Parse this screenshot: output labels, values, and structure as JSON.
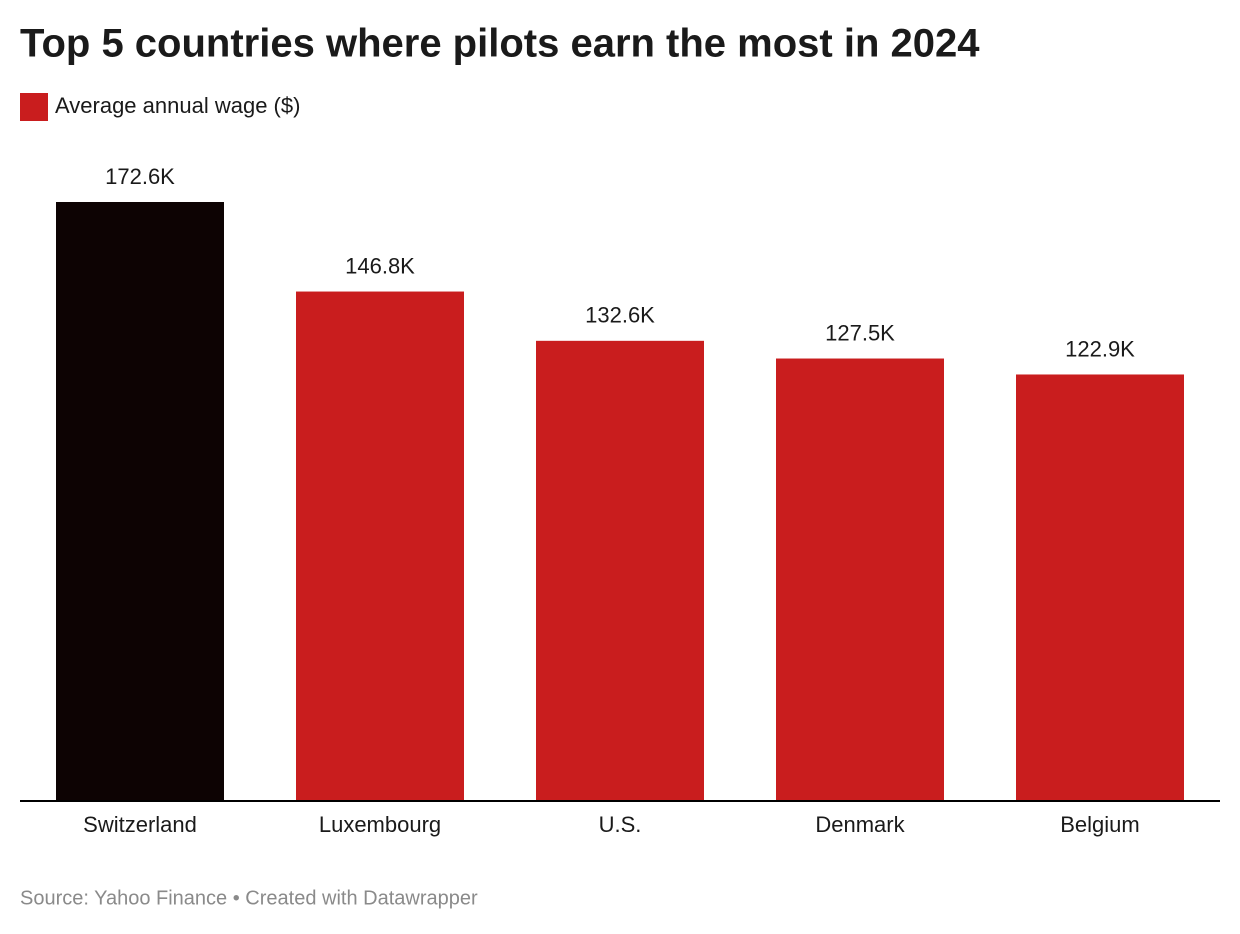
{
  "chart_data": {
    "type": "bar",
    "title": "Top 5 countries where pilots earn the most in 2024",
    "series_name": "Average annual wage ($)",
    "categories": [
      "Switzerland",
      "Luxembourg",
      "U.S.",
      "Denmark",
      "Belgium"
    ],
    "values": [
      172600,
      146800,
      132600,
      127500,
      122900
    ],
    "value_labels": [
      "172.6K",
      "146.8K",
      "132.6K",
      "127.5K",
      "122.9K"
    ],
    "color": "#c91d1e",
    "colors": [
      "#0d0303",
      "#c91d1e",
      "#c91d1e",
      "#c91d1e",
      "#c91d1e"
    ],
    "ylim": [
      0,
      172600
    ],
    "source": "Source: Yahoo Finance • Created with Datawrapper"
  }
}
